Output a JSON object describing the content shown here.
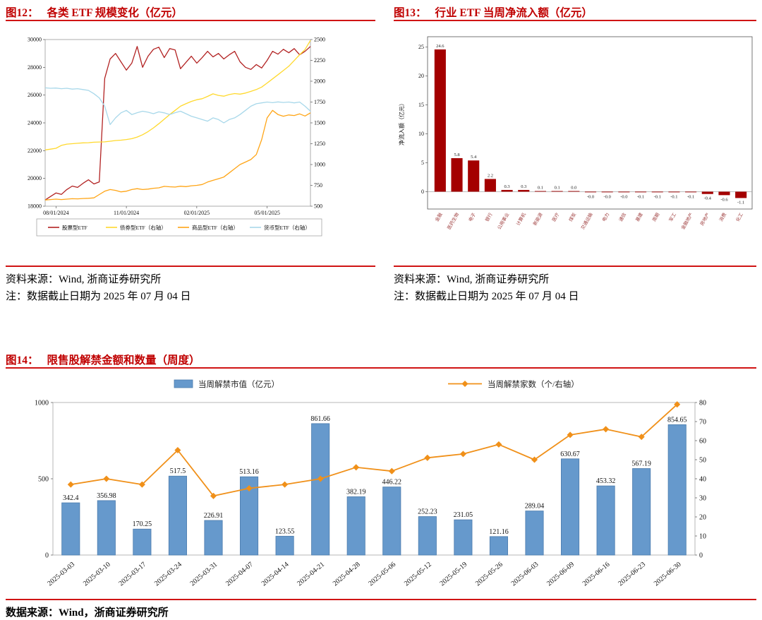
{
  "figures": {
    "fig12": {
      "label": "图12：",
      "title": "各类 ETF 规模变化（亿元）",
      "source": "资料来源：Wind, 浙商证券研究所",
      "note": "注：数据截止日期为 2025 年 07 月 04 日"
    },
    "fig13": {
      "label": "图13：",
      "title": "行业 ETF 当周净流入额（亿元）",
      "source": "资料来源：Wind, 浙商证券研究所",
      "note": "注：数据截止日期为 2025 年 07 月 04 日"
    },
    "fig14": {
      "label": "图14：",
      "title": "限售股解禁金额和数量（周度）",
      "source": "数据来源：Wind，浙商证券研究所"
    }
  },
  "colors": {
    "accent_red": "#c00000",
    "rule_red": "#d01414",
    "fig13_bar": "#a40000",
    "fig14_bar": "#6699cc",
    "fig14_line": "#f09019"
  },
  "chart_data": [
    {
      "id": "fig12",
      "type": "line",
      "title": "各类 ETF 规模变化（亿元）",
      "legend_position": "bottom",
      "grid": false,
      "left_axis": {
        "min": 18000,
        "max": 30000,
        "step": 2000
      },
      "right_axis": {
        "min": 500,
        "max": 2500,
        "step": 250
      },
      "x_ticks": [
        {
          "index": 2,
          "label": "08/01/2024"
        },
        {
          "index": 15,
          "label": "11/01/2024"
        },
        {
          "index": 28,
          "label": "02/01/2025"
        },
        {
          "index": 41,
          "label": "05/01/2025"
        }
      ],
      "series": [
        {
          "name": "股票型ETF",
          "axis": "left",
          "color": "#b22222",
          "values": [
            18450,
            18700,
            18950,
            18850,
            19200,
            19450,
            19350,
            19650,
            19900,
            19600,
            19750,
            27200,
            28600,
            29000,
            28400,
            27800,
            28300,
            29500,
            28000,
            28800,
            29300,
            29450,
            28700,
            29350,
            29250,
            27900,
            28350,
            28800,
            28300,
            28700,
            29150,
            28750,
            29000,
            28600,
            28900,
            29150,
            28400,
            28000,
            27850,
            28200,
            27950,
            28500,
            29150,
            28950,
            29300,
            29050,
            29350,
            28900,
            29150,
            29500
          ]
        },
        {
          "name": "债券型ETF（右轴）",
          "axis": "right",
          "color": "#ffd92e",
          "values": [
            1175,
            1185,
            1195,
            1230,
            1245,
            1250,
            1255,
            1260,
            1262,
            1268,
            1270,
            1272,
            1280,
            1288,
            1292,
            1300,
            1310,
            1330,
            1358,
            1395,
            1440,
            1490,
            1545,
            1600,
            1650,
            1700,
            1730,
            1758,
            1778,
            1790,
            1818,
            1848,
            1830,
            1820,
            1840,
            1852,
            1845,
            1858,
            1878,
            1900,
            1930,
            1978,
            2028,
            2078,
            2128,
            2180,
            2248,
            2318,
            2380,
            2490
          ]
        },
        {
          "name": "商品型ETF（右轴）",
          "axis": "right",
          "color": "#ffa516",
          "values": [
            575,
            580,
            585,
            580,
            585,
            590,
            588,
            592,
            595,
            600,
            640,
            680,
            700,
            690,
            672,
            680,
            700,
            710,
            700,
            705,
            715,
            720,
            738,
            733,
            730,
            740,
            735,
            745,
            750,
            760,
            790,
            810,
            830,
            850,
            900,
            950,
            1000,
            1030,
            1060,
            1120,
            1300,
            1560,
            1650,
            1600,
            1580,
            1595,
            1588,
            1608,
            1582,
            1620
          ]
        },
        {
          "name": "货币型ETF（右轴）",
          "axis": "right",
          "color": "#a8d8ea",
          "values": [
            1920,
            1915,
            1918,
            1910,
            1915,
            1905,
            1910,
            1900,
            1890,
            1850,
            1800,
            1700,
            1480,
            1560,
            1620,
            1650,
            1600,
            1622,
            1640,
            1628,
            1610,
            1632,
            1620,
            1600,
            1622,
            1640,
            1610,
            1580,
            1560,
            1540,
            1520,
            1560,
            1540,
            1500,
            1540,
            1560,
            1600,
            1650,
            1700,
            1730,
            1740,
            1750,
            1742,
            1752,
            1745,
            1750,
            1740,
            1750,
            1700,
            1640
          ]
        }
      ]
    },
    {
      "id": "fig13",
      "type": "bar",
      "title": "行业 ETF 当周净流入额（亿元）",
      "ylabel": "净流入额（亿元）",
      "bar_color": "#a40000",
      "y_axis": {
        "min": -3,
        "max": 25,
        "ticks": [
          0,
          5,
          10,
          15,
          20,
          25
        ]
      },
      "categories": [
        "金融",
        "医药生物",
        "电子",
        "银行",
        "公用事业",
        "计算机",
        "新能源",
        "医疗",
        "煤炭",
        "交通运输",
        "电力",
        "通信",
        "基建",
        "周期",
        "军工",
        "金融地产",
        "房地产",
        "消费",
        "化工"
      ],
      "values": [
        24.6,
        5.8,
        5.4,
        2.2,
        0.3,
        0.3,
        0.1,
        0.1,
        0.0,
        -0.0,
        -0.0,
        -0.0,
        -0.1,
        -0.1,
        -0.1,
        -0.1,
        -0.4,
        -0.6,
        -1.1
      ],
      "labels": [
        "24.6",
        "5.8",
        "5.4",
        "2.2",
        "0.3",
        "0.3",
        "0.1",
        "0.1",
        "0.0",
        "-0.0",
        "-0.0",
        "-0.0",
        "-0.1",
        "-0.1",
        "-0.1",
        "-0.1",
        "-0.4",
        "-0.6",
        "-1.1"
      ]
    },
    {
      "id": "fig14",
      "type": "combo",
      "title": "限售股解禁金额和数量（周度）",
      "legend_position": "top",
      "left_axis": {
        "min": 0,
        "max": 1000,
        "ticks": [
          0,
          500,
          1000
        ]
      },
      "right_axis": {
        "min": 0,
        "max": 80,
        "step": 10
      },
      "categories": [
        "2025-03-03",
        "2025-03-10",
        "2025-03-17",
        "2025-03-24",
        "2025-03-31",
        "2025-04-07",
        "2025-04-14",
        "2025-04-21",
        "2025-04-28",
        "2025-05-06",
        "2025-05-12",
        "2025-05-19",
        "2025-05-26",
        "2025-06-03",
        "2025-06-09",
        "2025-06-16",
        "2025-06-23",
        "2025-06-30"
      ],
      "bar_series": {
        "name": "当周解禁市值（亿元）",
        "color": "#6699cc",
        "values": [
          342.4,
          356.98,
          170.25,
          517.5,
          226.91,
          513.16,
          123.55,
          861.66,
          382.19,
          446.22,
          252.23,
          231.05,
          121.16,
          289.04,
          630.67,
          453.32,
          567.19,
          854.65
        ],
        "labels": [
          "342.4",
          "356.98",
          "170.25",
          "517.5",
          "226.91",
          "513.16",
          "123.55",
          "861.66",
          "382.19",
          "446.22",
          "252.23",
          "231.05",
          "121.16",
          "289.04",
          "630.67",
          "453.32",
          "567.19",
          "854.65"
        ]
      },
      "line_series": {
        "name": "当周解禁家数（个/右轴）",
        "color": "#f09019",
        "values": [
          37,
          40,
          37,
          55,
          31,
          35,
          37,
          40,
          46,
          44,
          51,
          53,
          58,
          50,
          63,
          66,
          62,
          79
        ]
      }
    }
  ]
}
